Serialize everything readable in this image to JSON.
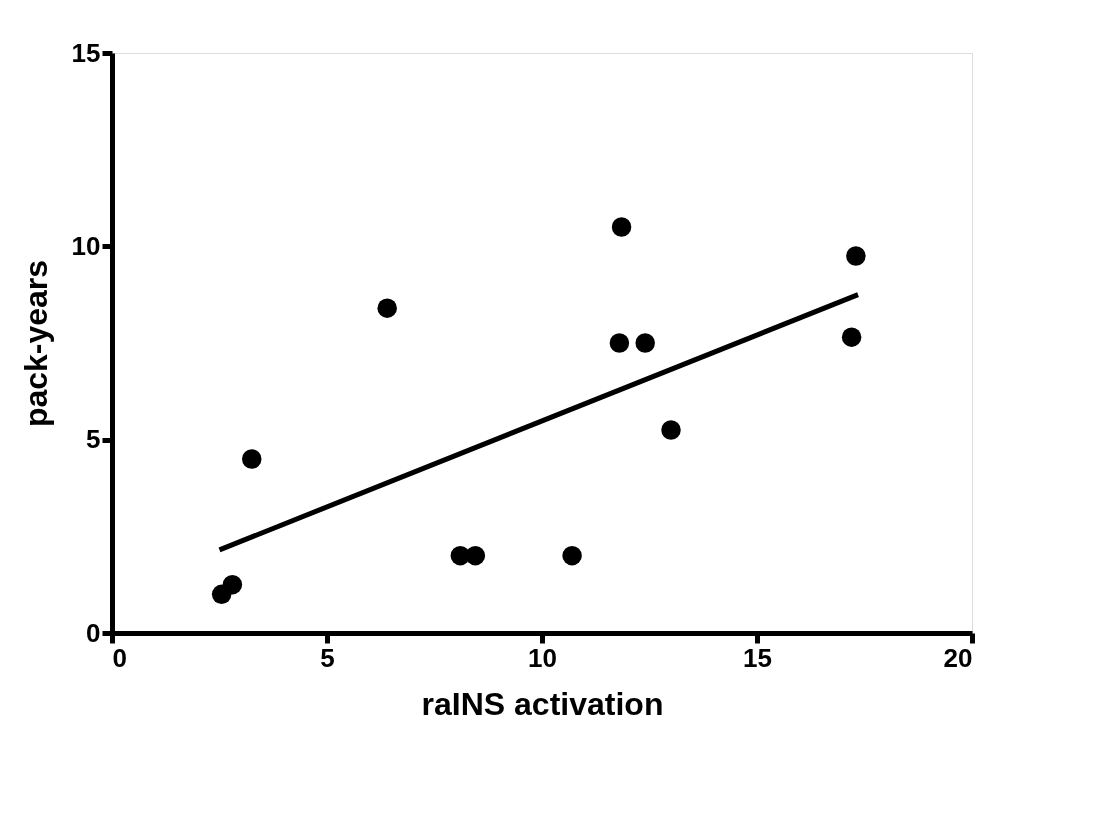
{
  "chart_data": {
    "type": "scatter",
    "xlabel": "raINS activation",
    "ylabel": "pack-years",
    "xlim": [
      0,
      20
    ],
    "xticks": [
      0,
      5,
      10,
      15,
      20
    ],
    "ylim": [
      0,
      15
    ],
    "yticks": [
      0,
      5,
      10,
      15
    ],
    "grid": false,
    "series": [
      {
        "color": "#000000",
        "marker": "circle",
        "x": [
          2.55,
          2.8,
          3.25,
          6.4,
          8.1,
          8.45,
          10.7,
          11.85,
          11.8,
          12.4,
          13.0,
          17.3,
          17.2
        ],
        "values": [
          1.0,
          1.25,
          4.5,
          8.4,
          2.0,
          2.0,
          2.0,
          10.5,
          7.5,
          7.5,
          5.25,
          9.75,
          7.65
        ]
      },
      {
        "type": "line",
        "color": "#000000",
        "marker": "none",
        "x": [
          2.5,
          17.35
        ],
        "values": [
          2.15,
          8.75
        ]
      }
    ]
  }
}
